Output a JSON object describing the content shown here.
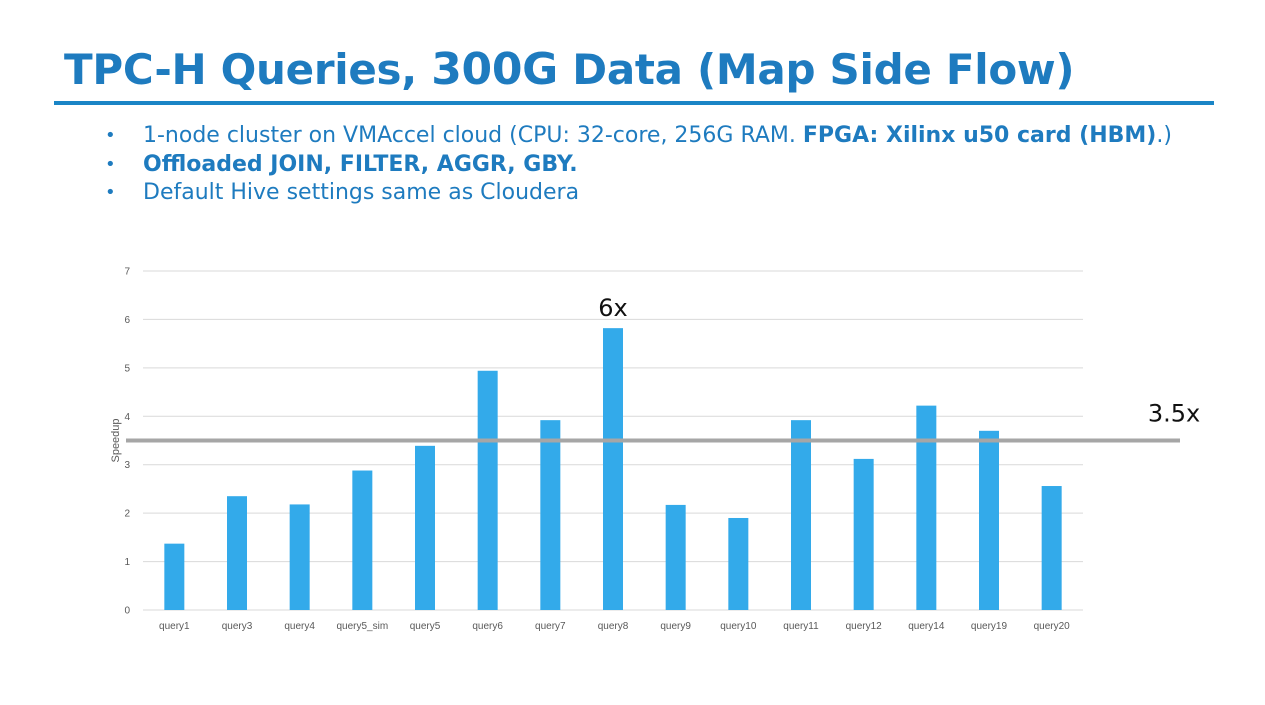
{
  "slide": {
    "title_part1": "TPC-H Queries, ",
    "title_part2": "300G",
    "title_part3": " Data (Map Side Flow)",
    "bullets": {
      "b1_text": "1-node cluster on VMAccel cloud (CPU: 32-core, 256G RAM. ",
      "b1_bold": "FPGA: Xilinx u50 card (HBM)",
      "b1_tail": ".)",
      "b2_bold": "Offloaded JOIN, FILTER, AGGR, GBY.",
      "b3_text": "Default Hive settings same as Cloudera",
      "bullet_glyph": "•"
    }
  },
  "chart_data": {
    "type": "bar",
    "categories": [
      "query1",
      "query3",
      "query4",
      "query5_sim",
      "query5",
      "query6",
      "query7",
      "query8",
      "query9",
      "query10",
      "query11",
      "query12",
      "query14",
      "query19",
      "query20"
    ],
    "values": [
      1.37,
      2.35,
      2.18,
      2.88,
      3.39,
      4.94,
      3.92,
      5.82,
      2.17,
      1.9,
      3.92,
      3.12,
      4.22,
      3.7,
      2.56
    ],
    "ylabel": "Speedup",
    "ylim": [
      0,
      7
    ],
    "yticks": [
      0,
      1,
      2,
      3,
      4,
      5,
      6,
      7
    ],
    "grid": true,
    "bar_color": "#33aaea",
    "reference_line": {
      "value": 3.5,
      "label": "3.5x",
      "color": "#a6a6a6"
    },
    "annotations": [
      {
        "category": "query8",
        "label": "6x"
      }
    ]
  }
}
